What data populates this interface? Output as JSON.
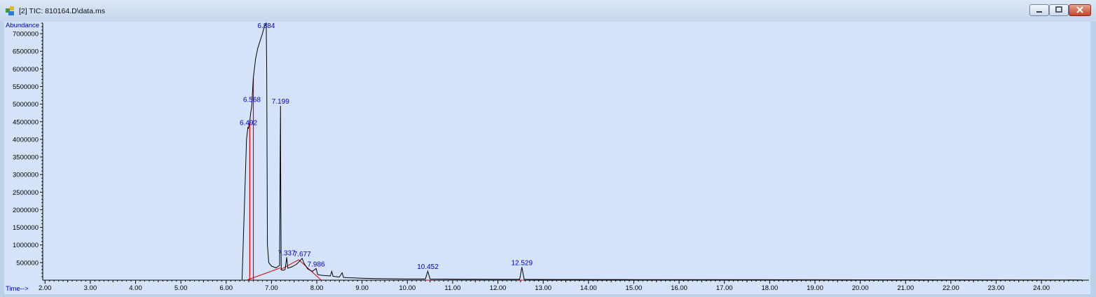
{
  "window": {
    "title": "[2] TIC: 810164.D\\data.ms",
    "minimize_icon": "minimize-icon",
    "maximize_icon": "maximize-icon",
    "close_icon": "close-icon"
  },
  "colors": {
    "plot_bg": "#d4e3fa",
    "trace": "#000000",
    "baseline": "#e00000",
    "peak_label": "#0000cc",
    "axis_label": "#0000cc"
  },
  "chart_data": {
    "type": "line",
    "title": "",
    "ylabel": "Abundance",
    "xlabel": "Time-->",
    "xlim": [
      1.95,
      25.05
    ],
    "ylim": [
      0,
      7300000
    ],
    "y_ticks": [
      500000,
      1000000,
      1500000,
      2000000,
      2500000,
      3000000,
      3500000,
      4000000,
      4500000,
      5000000,
      5500000,
      6000000,
      6500000,
      7000000
    ],
    "y_tick_labels": [
      "500000",
      "1000000",
      "1500000",
      "2000000",
      "2500000",
      "3000000",
      "3500000",
      "4000000",
      "4500000",
      "5000000",
      "5500000",
      "6000000",
      "6500000",
      "7000000"
    ],
    "x_ticks": [
      2,
      3,
      4,
      5,
      6,
      7,
      8,
      9,
      10,
      11,
      12,
      13,
      14,
      15,
      16,
      17,
      18,
      19,
      20,
      21,
      22,
      23,
      24
    ],
    "x_tick_labels": [
      "2.00",
      "3.00",
      "4.00",
      "5.00",
      "6.00",
      "7.00",
      "8.00",
      "9.00",
      "10.00",
      "11.00",
      "12.00",
      "13.00",
      "14.00",
      "15.00",
      "16.00",
      "17.00",
      "18.00",
      "19.00",
      "20.00",
      "21.00",
      "22.00",
      "23.00",
      "24.00"
    ],
    "grid": false,
    "legend": "none",
    "series": [
      {
        "x": [
          2.0,
          6.35,
          6.4,
          6.45,
          6.48,
          6.49,
          6.52,
          6.54,
          6.56,
          6.568,
          6.58,
          6.6,
          6.65,
          6.7,
          6.75,
          6.8,
          6.84,
          6.87,
          6.884,
          6.895,
          6.91,
          6.94,
          7.0,
          7.1,
          7.18,
          7.19,
          7.199,
          7.205,
          7.215,
          7.25,
          7.3,
          7.337,
          7.36,
          7.45,
          7.55,
          7.63,
          7.677,
          7.72,
          7.8,
          7.9,
          7.986,
          8.02,
          8.1,
          8.3,
          8.33,
          8.36,
          8.5,
          8.56,
          8.59,
          8.7,
          9.0,
          9.3,
          10.0,
          10.4,
          10.452,
          10.5,
          11.0,
          12.0,
          12.48,
          12.529,
          12.58,
          13.0,
          15.0,
          20.0,
          24.9
        ],
        "y": [
          0,
          0,
          2000000,
          4000000,
          4350000,
          4300000,
          4500000,
          4750000,
          4900000,
          5000000,
          5300000,
          5750000,
          6300000,
          6600000,
          6800000,
          7000000,
          7200000,
          7270000,
          7300000,
          6000000,
          1000000,
          500000,
          400000,
          350000,
          420000,
          3200000,
          4950000,
          2800000,
          300000,
          280000,
          300000,
          650000,
          340000,
          380000,
          450000,
          550000,
          620000,
          480000,
          320000,
          250000,
          330000,
          160000,
          140000,
          120000,
          250000,
          110000,
          90000,
          210000,
          80000,
          70000,
          55000,
          45000,
          35000,
          35000,
          260000,
          35000,
          30000,
          25000,
          25000,
          370000,
          25000,
          20000,
          15000,
          10000,
          5000
        ]
      }
    ],
    "peak_labels": [
      {
        "rt": 6.884,
        "label": "6.884",
        "y": 7300000
      },
      {
        "rt": 6.568,
        "label": "6.568",
        "y": 5000000
      },
      {
        "rt": 6.492,
        "label": "6.492",
        "y": 4350000
      },
      {
        "rt": 7.199,
        "label": "7.199",
        "y": 4950000
      },
      {
        "rt": 7.337,
        "label": "7.337",
        "y": 650000
      },
      {
        "rt": 7.677,
        "label": "7.677",
        "y": 620000
      },
      {
        "rt": 7.986,
        "label": "7.986",
        "y": 330000
      },
      {
        "rt": 10.452,
        "label": "10.452",
        "y": 260000
      },
      {
        "rt": 12.529,
        "label": "12.529",
        "y": 370000
      }
    ],
    "integration_baselines": [
      {
        "x": [
          6.45,
          7.2
        ],
        "y": [
          0,
          350000
        ]
      },
      {
        "x": [
          7.2,
          7.6
        ],
        "y": [
          300000,
          580000
        ]
      },
      {
        "x": [
          7.6,
          8.1
        ],
        "y": [
          580000,
          0
        ]
      },
      {
        "x": [
          10.4,
          10.5
        ],
        "y": [
          0,
          0
        ]
      },
      {
        "x": [
          12.48,
          12.58
        ],
        "y": [
          0,
          0
        ]
      }
    ],
    "integration_drops": [
      {
        "x": 6.52,
        "y": 4450000
      },
      {
        "x": 6.6,
        "y": 5750000
      }
    ]
  }
}
